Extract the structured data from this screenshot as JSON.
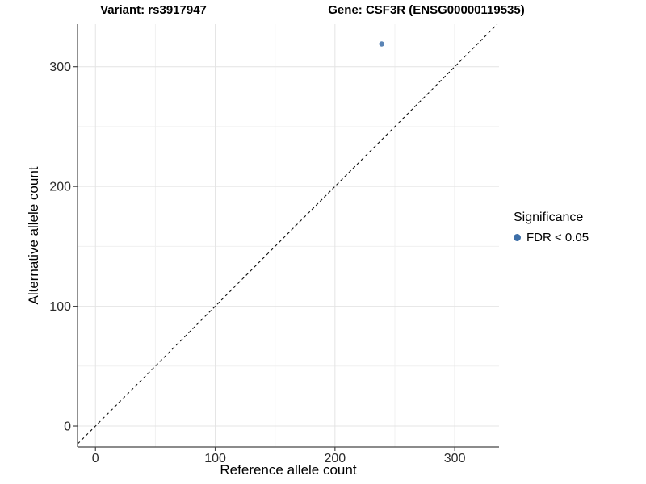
{
  "chart_data": {
    "type": "scatter",
    "titles": {
      "left": "Variant: rs3917947",
      "right": "Gene: CSF3R (ENSG00000119535)"
    },
    "xlabel": "Reference allele count",
    "ylabel": "Alternative allele count",
    "xlim": [
      -15,
      337
    ],
    "ylim": [
      -17.5,
      335.5
    ],
    "x_ticks": [
      0,
      100,
      200,
      300
    ],
    "y_ticks": [
      0,
      100,
      200,
      300
    ],
    "x_minor_ticks": [
      50,
      150,
      250
    ],
    "y_minor_ticks": [
      50,
      150,
      250
    ],
    "grid": true,
    "identity_line": {
      "slope": 1,
      "intercept": 0,
      "style": "dashed",
      "color": "#111111"
    },
    "series": [
      {
        "name": "FDR < 0.05",
        "color": "#3d6fa8",
        "points": [
          {
            "x": 239,
            "y": 319
          }
        ]
      }
    ],
    "legend": {
      "position": "right",
      "title": "Significance",
      "entries": [
        {
          "label": "FDR < 0.05",
          "color": "#3d6fa8"
        }
      ]
    },
    "style_colors": {
      "axis_line": "#464646",
      "tick_label": "#2b2b2b",
      "grid_major": "#e4e4e4",
      "grid_minor": "#f0f0f0"
    }
  }
}
